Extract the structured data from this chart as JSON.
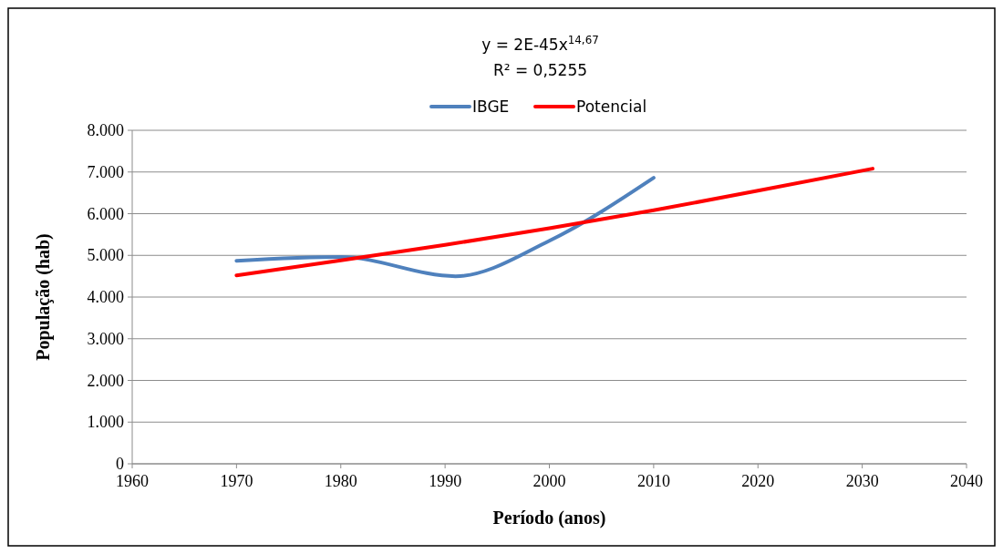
{
  "chart_data": {
    "type": "line",
    "xlabel": "Período (anos)",
    "ylabel": "População (hab)",
    "annotations": [
      "y = 2E-45x$^{14,67}$",
      "R² = 0,5255"
    ],
    "xlim": [
      1960,
      2040
    ],
    "xticks": [
      1960,
      1970,
      1980,
      1990,
      2000,
      2010,
      2020,
      2030,
      2040
    ],
    "ylim": [
      0,
      8000
    ],
    "yticks": [
      {
        "value": 0,
        "label": "0"
      },
      {
        "value": 1000,
        "label": "1.000"
      },
      {
        "value": 2000,
        "label": "2.000"
      },
      {
        "value": 3000,
        "label": "3.000"
      },
      {
        "value": 4000,
        "label": "4.000"
      },
      {
        "value": 5000,
        "label": "5.000"
      },
      {
        "value": 6000,
        "label": "6.000"
      },
      {
        "value": 7000,
        "label": "7.000"
      },
      {
        "value": 8000,
        "label": "8.000"
      }
    ],
    "grid": "y",
    "legend": "top",
    "marker": "none",
    "line_style": "solid",
    "series": [
      {
        "name": "IBGE",
        "color": "#4f81bd",
        "x": [
          1970,
          1980,
          1991,
          2000,
          2010
        ],
        "values": [
          4870,
          4960,
          4500,
          5350,
          6860
        ]
      },
      {
        "name": "Potencial",
        "color": "#ff0000",
        "type": "line",
        "x": [
          1970,
          1980,
          1990,
          2000,
          2010,
          2020,
          2031
        ],
        "values": [
          4520,
          4880,
          5250,
          5650,
          6080,
          6550,
          7080
        ]
      }
    ]
  }
}
